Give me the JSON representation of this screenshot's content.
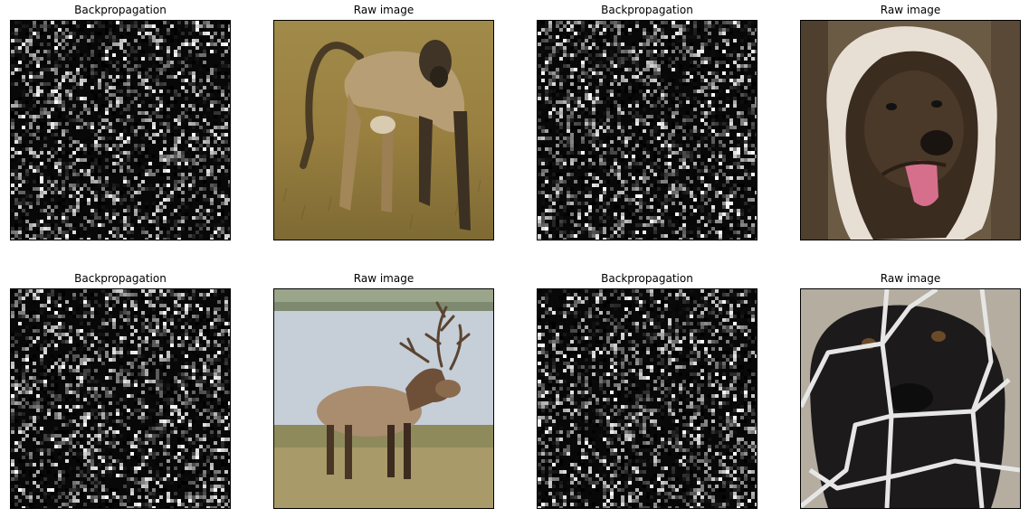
{
  "figure": {
    "panels": [
      {
        "title": "Backpropagation",
        "kind": "saliency",
        "subject": "baboon-saliency"
      },
      {
        "title": "Raw image",
        "kind": "photo",
        "subject": "baboon"
      },
      {
        "title": "Backpropagation",
        "kind": "saliency",
        "subject": "dog-saliency"
      },
      {
        "title": "Raw image",
        "kind": "photo",
        "subject": "long-haired-dog"
      },
      {
        "title": "Backpropagation",
        "kind": "saliency",
        "subject": "elk-saliency"
      },
      {
        "title": "Raw image",
        "kind": "photo",
        "subject": "elk"
      },
      {
        "title": "Backpropagation",
        "kind": "saliency",
        "subject": "dog-fence-saliency"
      },
      {
        "title": "Raw image",
        "kind": "photo",
        "subject": "dog-behind-fence"
      }
    ]
  }
}
